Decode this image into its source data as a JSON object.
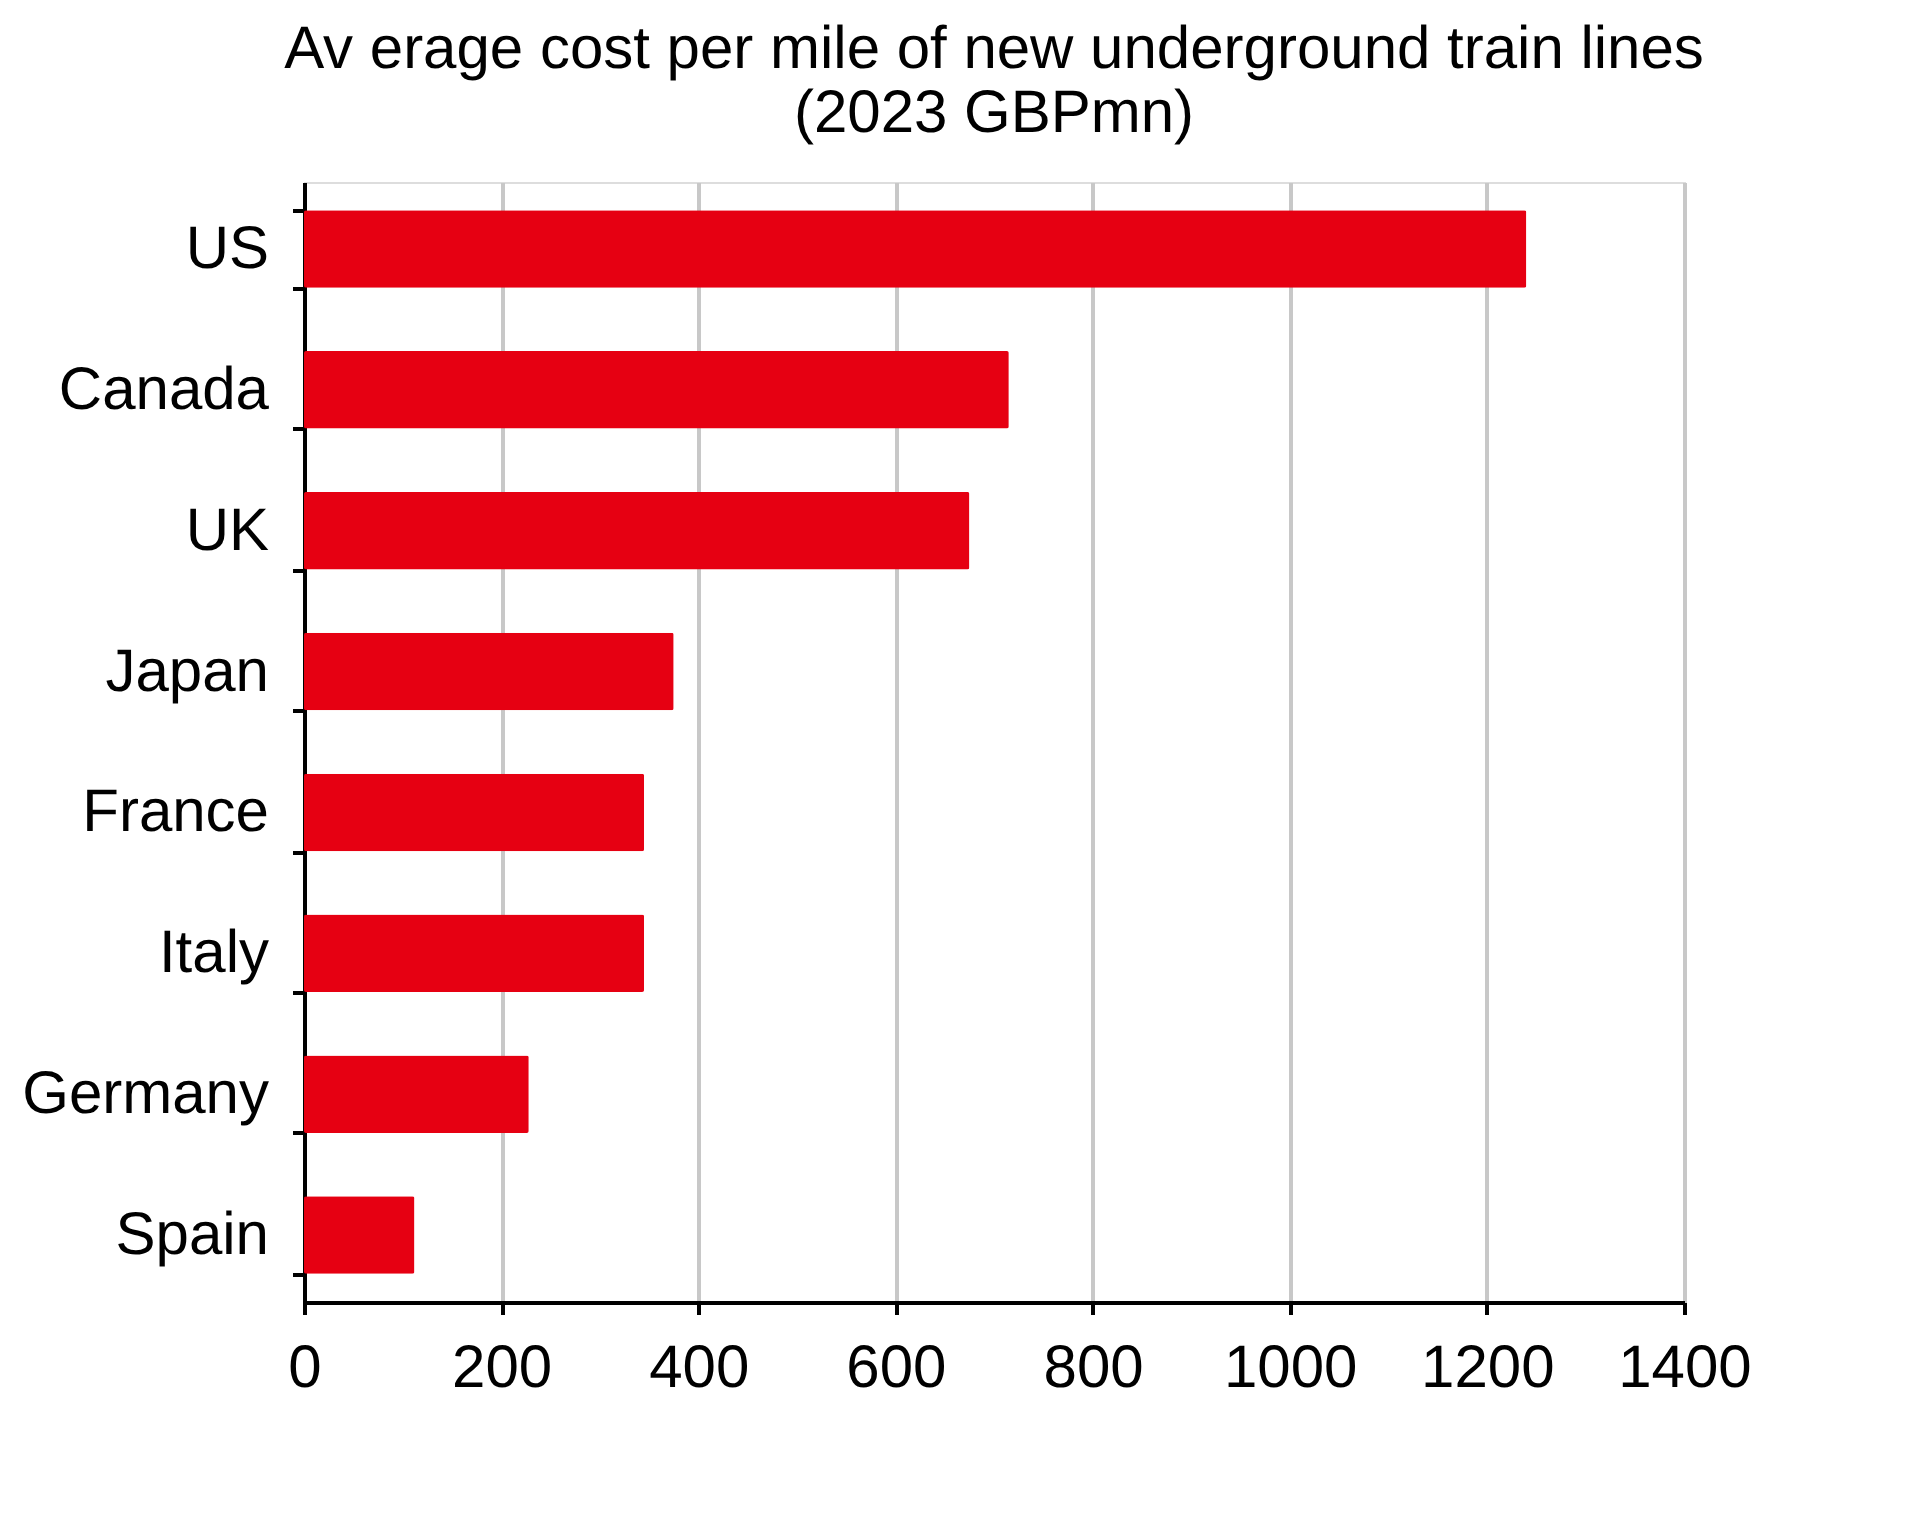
{
  "chart_data": {
    "type": "bar",
    "orientation": "horizontal",
    "title": [
      "Av erage cost per mile of new underground train lines",
      "(2023 GBPmn)"
    ],
    "categories": [
      "US",
      "Canada",
      "UK",
      "Japan",
      "France",
      "Italy",
      "Germany",
      "Spain"
    ],
    "values": [
      1240,
      715,
      675,
      375,
      345,
      345,
      228,
      112
    ],
    "color": "#e60012",
    "xlim": [
      0,
      1400
    ],
    "xticks": [
      0,
      200,
      400,
      600,
      800,
      1000,
      1200,
      1400
    ],
    "grid": "x"
  }
}
